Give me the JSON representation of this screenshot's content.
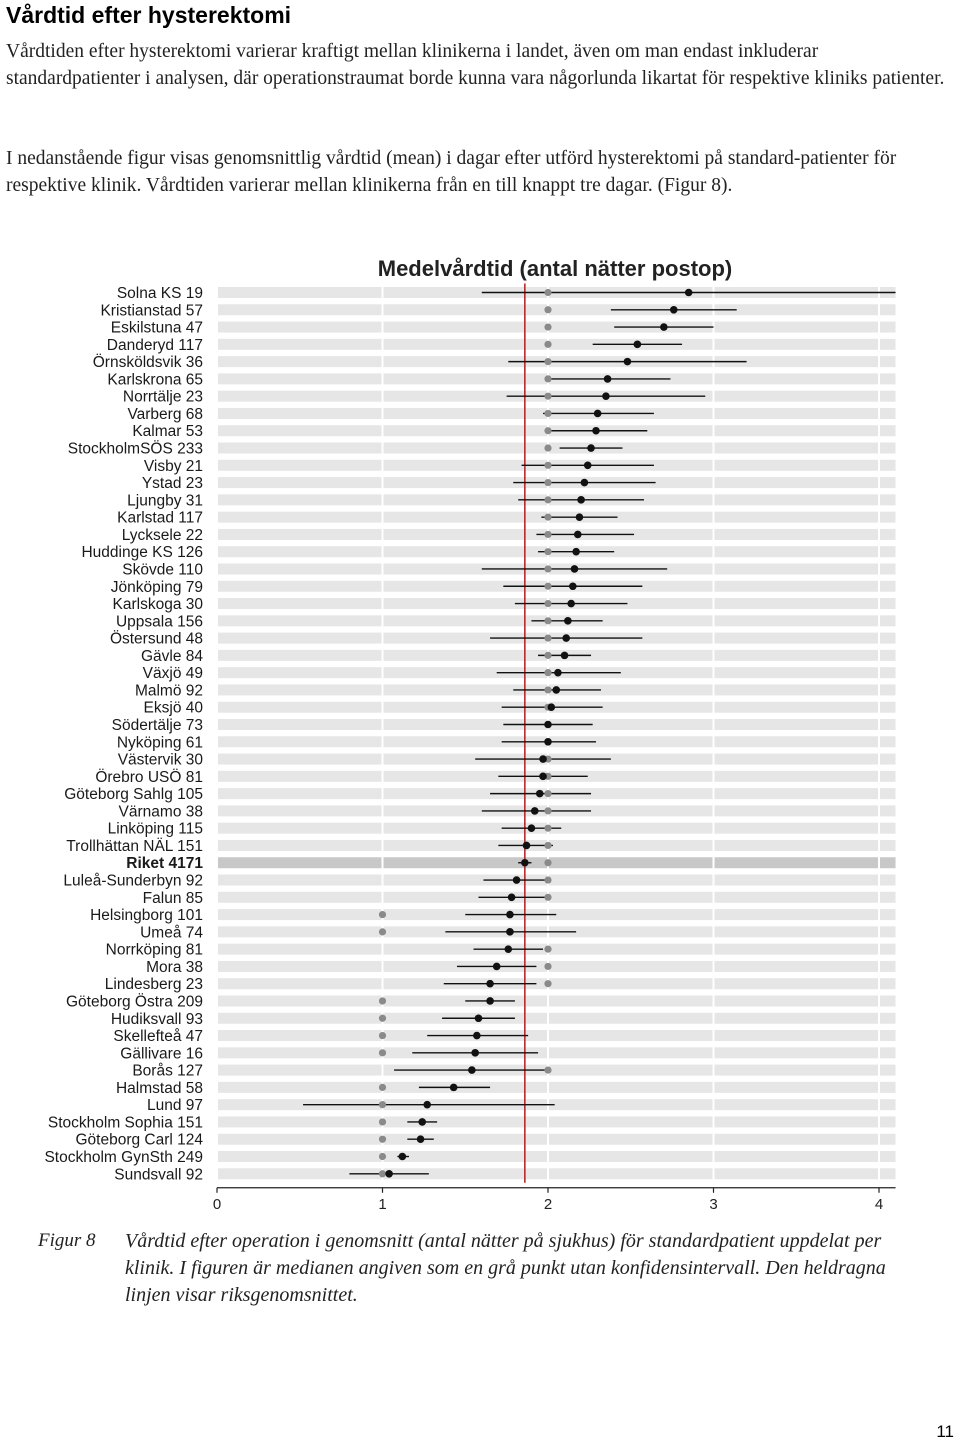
{
  "document": {
    "heading": "Vårdtid efter hysterektomi",
    "paragraph1": "Vårdtiden efter hysterektomi varierar kraftigt mellan klinikerna i landet, även om man endast inkluderar standardpatienter i analysen, där operationstraumat borde kunna vara någorlunda likartat för respektive kliniks patienter.",
    "paragraph2": "I nedanstående figur visas genomsnittlig vårdtid (mean) i dagar efter utförd hysterektomi på standard-patienter för respektive klinik. Vårdtiden varierar mellan klinikerna från en till knappt tre dagar. (Figur 8).",
    "caption_label": "Figur 8",
    "caption_text": "Vårdtid efter operation i genomsnitt (antal nätter på sjukhus) för standardpatient uppdelat per klinik. I figuren är medianen angiven som en grå punkt utan konfidensintervall. Den heldragna linjen visar riksgenomsnittet.",
    "page_number": "11"
  },
  "chart_data": {
    "type": "scatter",
    "title": "Medelvårdtid (antal nätter postop)",
    "xlim": [
      0,
      4.1
    ],
    "xticks": [
      0,
      1,
      2,
      3,
      4
    ],
    "grid": "horizontal-bands",
    "reference_line": {
      "value": 1.86
    },
    "colors": {
      "mean": "#111111",
      "median": "#8a8a8a",
      "reference": "#cc2222",
      "band": "#e6e6e6",
      "highlight_band": "#c8c8c8"
    },
    "highlight_label": "Riket 4171",
    "rows": [
      {
        "label": "Solna KS 19",
        "mean": 2.85,
        "median": 2.0,
        "low": 1.6,
        "high": 4.1
      },
      {
        "label": "Kristianstad 57",
        "mean": 2.76,
        "median": 2.0,
        "low": 2.38,
        "high": 3.14
      },
      {
        "label": "Eskilstuna 47",
        "mean": 2.7,
        "median": 2.0,
        "low": 2.4,
        "high": 3.0
      },
      {
        "label": "Danderyd 117",
        "mean": 2.54,
        "median": 2.0,
        "low": 2.27,
        "high": 2.81
      },
      {
        "label": "Örnsköldsvik 36",
        "mean": 2.48,
        "median": 2.0,
        "low": 1.76,
        "high": 3.2
      },
      {
        "label": "Karlskrona 65",
        "mean": 2.36,
        "median": 2.0,
        "low": 1.98,
        "high": 2.74
      },
      {
        "label": "Norrtälje 23",
        "mean": 2.35,
        "median": 2.0,
        "low": 1.75,
        "high": 2.95
      },
      {
        "label": "Varberg 68",
        "mean": 2.3,
        "median": 2.0,
        "low": 1.97,
        "high": 2.64
      },
      {
        "label": "Kalmar 53",
        "mean": 2.29,
        "median": 2.0,
        "low": 1.98,
        "high": 2.6
      },
      {
        "label": "StockholmSÖS 233",
        "mean": 2.26,
        "median": 2.0,
        "low": 2.07,
        "high": 2.45
      },
      {
        "label": "Visby 21",
        "mean": 2.24,
        "median": 2.0,
        "low": 1.84,
        "high": 2.64
      },
      {
        "label": "Ystad 23",
        "mean": 2.22,
        "median": 2.0,
        "low": 1.79,
        "high": 2.65
      },
      {
        "label": "Ljungby 31",
        "mean": 2.2,
        "median": 2.0,
        "low": 1.82,
        "high": 2.58
      },
      {
        "label": "Karlstad 117",
        "mean": 2.19,
        "median": 2.0,
        "low": 1.96,
        "high": 2.42
      },
      {
        "label": "Lycksele 22",
        "mean": 2.18,
        "median": 2.0,
        "low": 1.93,
        "high": 2.52
      },
      {
        "label": "Huddinge KS 126",
        "mean": 2.17,
        "median": 2.0,
        "low": 1.94,
        "high": 2.4
      },
      {
        "label": "Skövde 110",
        "mean": 2.16,
        "median": 2.0,
        "low": 1.6,
        "high": 2.72
      },
      {
        "label": "Jönköping 79",
        "mean": 2.15,
        "median": 2.0,
        "low": 1.73,
        "high": 2.57
      },
      {
        "label": "Karlskoga 30",
        "mean": 2.14,
        "median": 2.0,
        "low": 1.8,
        "high": 2.48
      },
      {
        "label": "Uppsala 156",
        "mean": 2.12,
        "median": 2.0,
        "low": 1.9,
        "high": 2.33
      },
      {
        "label": "Östersund 48",
        "mean": 2.11,
        "median": 2.0,
        "low": 1.65,
        "high": 2.57
      },
      {
        "label": "Gävle 84",
        "mean": 2.1,
        "median": 2.0,
        "low": 1.94,
        "high": 2.26
      },
      {
        "label": "Växjö 49",
        "mean": 2.06,
        "median": 2.0,
        "low": 1.69,
        "high": 2.44
      },
      {
        "label": "Malmö 92",
        "mean": 2.05,
        "median": 2.0,
        "low": 1.79,
        "high": 2.32
      },
      {
        "label": "Eksjö 40",
        "mean": 2.02,
        "median": 2.0,
        "low": 1.72,
        "high": 2.33
      },
      {
        "label": "Södertälje 73",
        "mean": 2.0,
        "median": 2.0,
        "low": 1.73,
        "high": 2.27
      },
      {
        "label": "Nyköping 61",
        "mean": 2.0,
        "median": 2.0,
        "low": 1.72,
        "high": 2.29
      },
      {
        "label": "Västervik 30",
        "mean": 1.97,
        "median": 2.0,
        "low": 1.56,
        "high": 2.38
      },
      {
        "label": "Örebro USÖ 81",
        "mean": 1.97,
        "median": 2.0,
        "low": 1.7,
        "high": 2.24
      },
      {
        "label": "Göteborg Sahlg 105",
        "mean": 1.95,
        "median": 2.0,
        "low": 1.65,
        "high": 2.26
      },
      {
        "label": "Värnamo 38",
        "mean": 1.92,
        "median": 2.0,
        "low": 1.6,
        "high": 2.26
      },
      {
        "label": "Linköping 115",
        "mean": 1.9,
        "median": 2.0,
        "low": 1.72,
        "high": 2.08
      },
      {
        "label": "Trollhättan NÄL 151",
        "mean": 1.87,
        "median": 2.0,
        "low": 1.7,
        "high": 2.03
      },
      {
        "label": "Riket 4171",
        "mean": 1.86,
        "median": 2.0,
        "low": 1.82,
        "high": 1.9
      },
      {
        "label": "Luleå-Sunderbyn 92",
        "mean": 1.81,
        "median": 2.0,
        "low": 1.61,
        "high": 2.01
      },
      {
        "label": "Falun 85",
        "mean": 1.78,
        "median": 2.0,
        "low": 1.58,
        "high": 1.98
      },
      {
        "label": "Helsingborg 101",
        "mean": 1.77,
        "median": 1.0,
        "low": 1.5,
        "high": 2.05
      },
      {
        "label": "Umeå 74",
        "mean": 1.77,
        "median": 1.0,
        "low": 1.38,
        "high": 2.17
      },
      {
        "label": "Norrköping 81",
        "mean": 1.76,
        "median": 2.0,
        "low": 1.55,
        "high": 1.97
      },
      {
        "label": "Mora 38",
        "mean": 1.69,
        "median": 2.0,
        "low": 1.45,
        "high": 1.93
      },
      {
        "label": "Lindesberg 23",
        "mean": 1.65,
        "median": 2.0,
        "low": 1.37,
        "high": 1.93
      },
      {
        "label": "Göteborg Östra 209",
        "mean": 1.65,
        "median": 1.0,
        "low": 1.5,
        "high": 1.8
      },
      {
        "label": "Hudiksvall 93",
        "mean": 1.58,
        "median": 1.0,
        "low": 1.36,
        "high": 1.8
      },
      {
        "label": "Skellefteå 47",
        "mean": 1.57,
        "median": 1.0,
        "low": 1.27,
        "high": 1.88
      },
      {
        "label": "Gällivare 16",
        "mean": 1.56,
        "median": 1.0,
        "low": 1.18,
        "high": 1.94
      },
      {
        "label": "Borås 127",
        "mean": 1.54,
        "median": 2.0,
        "low": 1.07,
        "high": 2.01
      },
      {
        "label": "Halmstad 58",
        "mean": 1.43,
        "median": 1.0,
        "low": 1.22,
        "high": 1.65
      },
      {
        "label": "Lund 97",
        "mean": 1.27,
        "median": 1.0,
        "low": 0.52,
        "high": 2.04
      },
      {
        "label": "Stockholm Sophia 151",
        "mean": 1.24,
        "median": 1.0,
        "low": 1.15,
        "high": 1.33
      },
      {
        "label": "Göteborg Carl 124",
        "mean": 1.23,
        "median": 1.0,
        "low": 1.15,
        "high": 1.31
      },
      {
        "label": "Stockholm GynSth 249",
        "mean": 1.12,
        "median": 1.0,
        "low": 1.09,
        "high": 1.16
      },
      {
        "label": "Sundsvall 92",
        "mean": 1.04,
        "median": 1.0,
        "low": 0.8,
        "high": 1.28
      }
    ]
  }
}
